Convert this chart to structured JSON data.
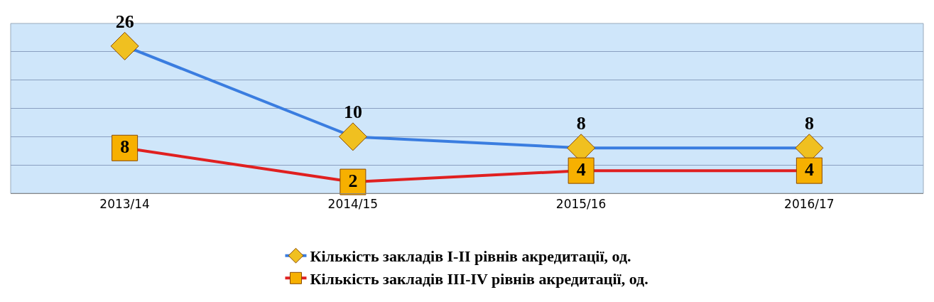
{
  "chart_data": {
    "type": "line",
    "categories": [
      "2013/14",
      "2014/15",
      "2015/16",
      "2016/17"
    ],
    "series": [
      {
        "name": "Кількість закладів I-II рівнів акредитації, од.",
        "color": "#3a7de0",
        "marker": "diamond",
        "values": [
          26,
          10,
          8,
          8
        ]
      },
      {
        "name": "Кількість закладів III-IV рівнів акредитації, од.",
        "color": "#e02020",
        "marker": "square",
        "values": [
          8,
          2,
          4,
          4
        ]
      }
    ],
    "ylim": [
      0,
      30
    ],
    "yticks": [
      {
        "value": 0,
        "label": null
      },
      {
        "value": 5,
        "label": null
      },
      {
        "value": 10,
        "label": null
      },
      {
        "value": 15,
        "label": null
      },
      {
        "value": 20,
        "label": null
      },
      {
        "value": 25,
        "label": null
      },
      {
        "value": 30,
        "label": null
      }
    ],
    "tick_labels": "x",
    "grid": "y",
    "data_labels": true,
    "legend": "bottom",
    "line_style": "solid"
  }
}
